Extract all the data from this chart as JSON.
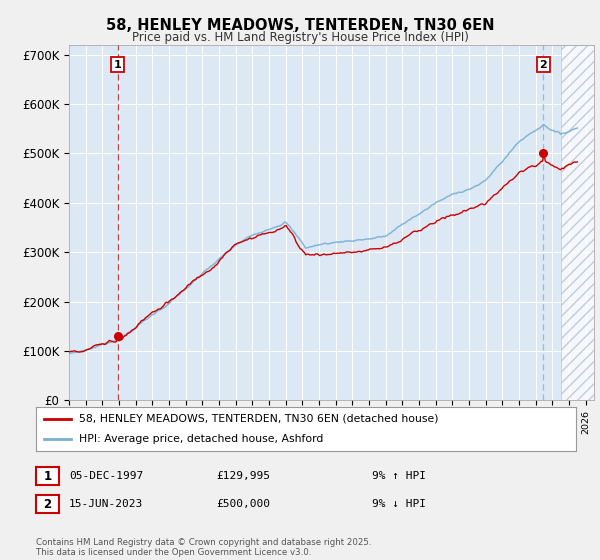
{
  "title": "58, HENLEY MEADOWS, TENTERDEN, TN30 6EN",
  "subtitle": "Price paid vs. HM Land Registry's House Price Index (HPI)",
  "ylabel_ticks": [
    "£0",
    "£100K",
    "£200K",
    "£300K",
    "£400K",
    "£500K",
    "£600K",
    "£700K"
  ],
  "ytick_values": [
    0,
    100000,
    200000,
    300000,
    400000,
    500000,
    600000,
    700000
  ],
  "ylim": [
    0,
    720000
  ],
  "xlim_start": 1995.0,
  "xlim_end": 2026.5,
  "sale1_year": 1997.92,
  "sale1_price": 129995,
  "sale2_year": 2023.46,
  "sale2_price": 500000,
  "hatch_start": 2024.5,
  "sale1_label": "05-DEC-1997",
  "sale1_amount": "£129,995",
  "sale1_hpi": "9% ↑ HPI",
  "sale2_label": "15-JUN-2023",
  "sale2_amount": "£500,000",
  "sale2_hpi": "9% ↓ HPI",
  "legend1": "58, HENLEY MEADOWS, TENTERDEN, TN30 6EN (detached house)",
  "legend2": "HPI: Average price, detached house, Ashford",
  "footer": "Contains HM Land Registry data © Crown copyright and database right 2025.\nThis data is licensed under the Open Government Licence v3.0.",
  "line_red": "#cc0000",
  "line_blue": "#7aafd4",
  "plot_bg": "#dce9f5",
  "grid_color": "#ffffff",
  "fig_bg": "#f0f0f0"
}
